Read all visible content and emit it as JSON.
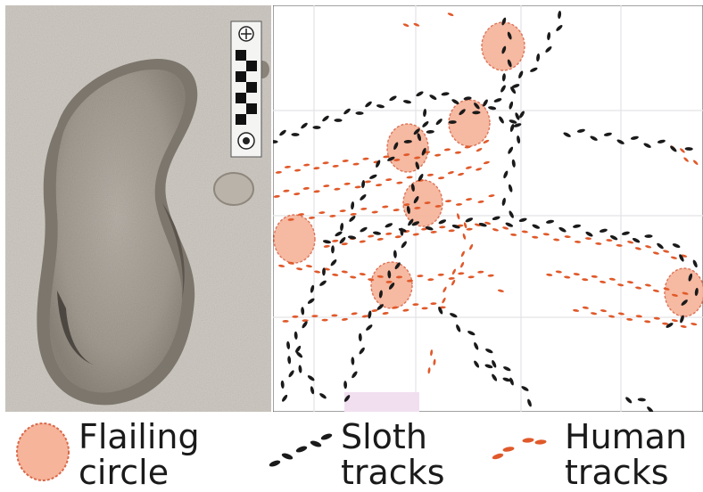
{
  "legend": {
    "flailing_circle": {
      "label": "Flailing\ncircle",
      "color": "#f6b49a",
      "stroke": "#d9694a"
    },
    "sloth_tracks": {
      "label": "Sloth\ntracks",
      "color": "#1a1a1a"
    },
    "human_tracks": {
      "label": "Human\ntracks",
      "color": "#e0592a"
    }
  },
  "photo": {
    "scale_bar_icon": "scale-bar",
    "subject": "sloth-footprint"
  }
}
